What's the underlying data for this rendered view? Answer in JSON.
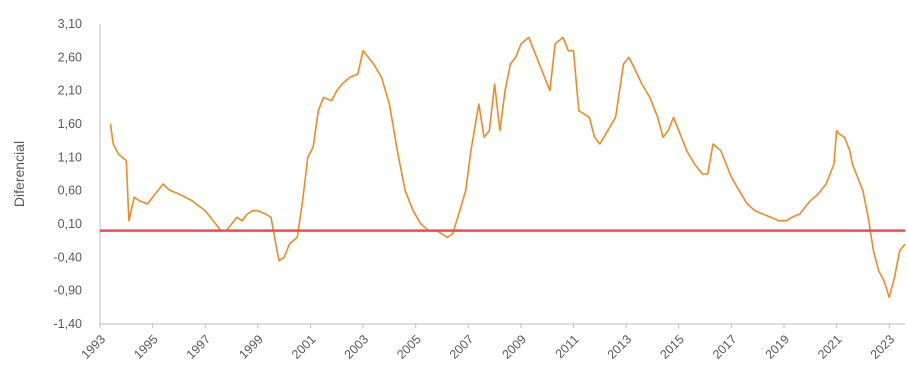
{
  "chart_data": {
    "type": "line",
    "ylabel": "Diferencial",
    "xlabel": "",
    "title": "",
    "ylim": [
      -1.4,
      3.1
    ],
    "xlim": [
      1993.0,
      2023.6
    ],
    "y_ticks": [
      "3,10",
      "2,60",
      "2,10",
      "1,60",
      "1,10",
      "0,60",
      "0,10",
      "-0,40",
      "-0,90",
      "-1,40"
    ],
    "y_tick_values": [
      3.1,
      2.6,
      2.1,
      1.6,
      1.1,
      0.6,
      0.1,
      -0.4,
      -0.9,
      -1.4
    ],
    "x_ticks": [
      "1993",
      "1995",
      "1997",
      "1999",
      "2001",
      "2003",
      "2005",
      "2007",
      "2009",
      "2011",
      "2013",
      "2015",
      "2017",
      "2019",
      "2021",
      "2023"
    ],
    "x_tick_values": [
      1993,
      1995,
      1997,
      1999,
      2001,
      2003,
      2005,
      2007,
      2009,
      2011,
      2013,
      2015,
      2017,
      2019,
      2021,
      2023
    ],
    "grid": false,
    "colors": {
      "series": "#f08a24",
      "reference": "#f04b4b",
      "axis": "#bfbfbf"
    },
    "reference_line": {
      "y": 0.0
    },
    "series": [
      {
        "x": [
          1993.4,
          1993.5,
          1993.7,
          1994.0,
          1994.1,
          1994.3,
          1994.5,
          1994.8,
          1995.1,
          1995.4,
          1995.6,
          1995.7,
          1996.0,
          1996.5,
          1997.0,
          1997.3,
          1997.6,
          1997.8,
          1998.0,
          1998.2,
          1998.4,
          1998.6,
          1998.8,
          1999.0,
          1999.3,
          1999.5,
          1999.8,
          2000.0,
          2000.2,
          2000.5,
          2000.7,
          2000.9,
          2001.1,
          2001.3,
          2001.5,
          2001.8,
          2002.0,
          2002.2,
          2002.5,
          2002.8,
          2003.0,
          2003.2,
          2003.4,
          2003.7,
          2004.0,
          2004.3,
          2004.6,
          2004.9,
          2005.2,
          2005.5,
          2005.8,
          2006.0,
          2006.2,
          2006.4,
          2006.6,
          2006.9,
          2007.1,
          2007.4,
          2007.6,
          2007.8,
          2008.0,
          2008.2,
          2008.4,
          2008.6,
          2008.8,
          2009.0,
          2009.3,
          2009.6,
          2009.9,
          2010.1,
          2010.3,
          2010.6,
          2010.8,
          2011.0,
          2011.2,
          2011.4,
          2011.6,
          2011.8,
          2012.0,
          2012.3,
          2012.6,
          2012.9,
          2013.1,
          2013.3,
          2013.6,
          2013.9,
          2014.2,
          2014.4,
          2014.6,
          2014.8,
          2015.0,
          2015.3,
          2015.6,
          2015.9,
          2016.1,
          2016.3,
          2016.6,
          2016.8,
          2017.0,
          2017.3,
          2017.6,
          2017.9,
          2018.2,
          2018.5,
          2018.8,
          2019.1,
          2019.3,
          2019.6,
          2019.8,
          2020.0,
          2020.3,
          2020.6,
          2020.9,
          2021.0,
          2021.1,
          2021.3,
          2021.5,
          2021.6,
          2021.8,
          2022.0,
          2022.2,
          2022.4,
          2022.6,
          2022.8,
          2023.0,
          2023.2,
          2023.4,
          2023.6
        ],
        "y": [
          1.6,
          1.3,
          1.15,
          1.05,
          0.15,
          0.5,
          0.45,
          0.4,
          0.55,
          0.7,
          0.62,
          0.6,
          0.55,
          0.45,
          0.3,
          0.15,
          0.0,
          0.0,
          0.1,
          0.2,
          0.15,
          0.25,
          0.3,
          0.3,
          0.25,
          0.2,
          -0.45,
          -0.4,
          -0.2,
          -0.1,
          0.45,
          1.1,
          1.25,
          1.8,
          2.0,
          1.95,
          2.1,
          2.2,
          2.3,
          2.35,
          2.7,
          2.6,
          2.5,
          2.3,
          1.9,
          1.2,
          0.6,
          0.3,
          0.1,
          0.0,
          0.0,
          -0.05,
          -0.1,
          -0.05,
          0.2,
          0.6,
          1.2,
          1.9,
          1.4,
          1.5,
          2.2,
          1.5,
          2.1,
          2.5,
          2.6,
          2.8,
          2.9,
          2.6,
          2.3,
          2.1,
          2.8,
          2.9,
          2.7,
          2.7,
          1.8,
          1.75,
          1.7,
          1.4,
          1.3,
          1.5,
          1.7,
          2.5,
          2.6,
          2.45,
          2.2,
          2.0,
          1.7,
          1.4,
          1.5,
          1.7,
          1.5,
          1.2,
          1.0,
          0.85,
          0.85,
          1.3,
          1.2,
          1.0,
          0.8,
          0.6,
          0.4,
          0.3,
          0.25,
          0.2,
          0.15,
          0.15,
          0.2,
          0.25,
          0.35,
          0.45,
          0.55,
          0.7,
          1.0,
          1.5,
          1.45,
          1.4,
          1.2,
          1.0,
          0.8,
          0.6,
          0.2,
          -0.3,
          -0.6,
          -0.75,
          -1.0,
          -0.7,
          -0.3,
          -0.2
        ]
      }
    ]
  }
}
